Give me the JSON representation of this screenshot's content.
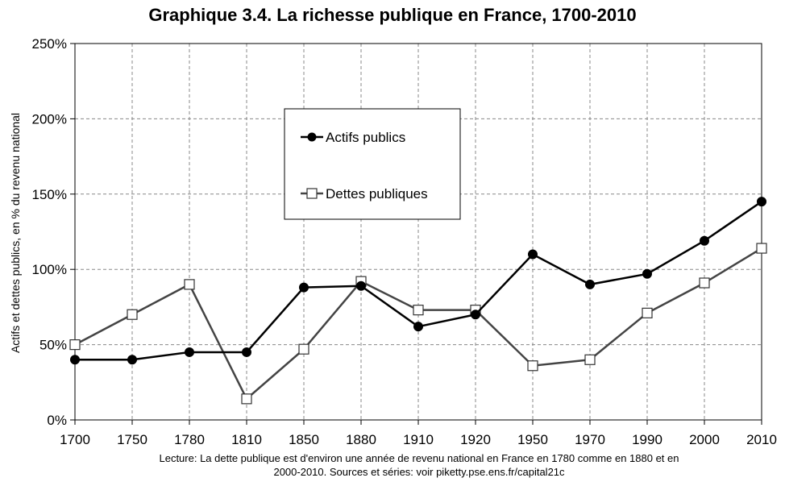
{
  "chart_data": {
    "type": "line",
    "title": "Graphique 3.4. La richesse publique en France, 1700-2010",
    "ylabel": "Actifs et dettes publics, en % du revenu national",
    "xlabel": "",
    "categories": [
      "1700",
      "1750",
      "1780",
      "1810",
      "1850",
      "1880",
      "1910",
      "1920",
      "1950",
      "1970",
      "1990",
      "2000",
      "2010"
    ],
    "ylim": [
      0,
      250
    ],
    "yticks": [
      0,
      50,
      100,
      150,
      200,
      250
    ],
    "ytick_labels": [
      "0%",
      "50%",
      "100%",
      "150%",
      "200%",
      "250%"
    ],
    "grid": true,
    "legend_position": "top-center",
    "series": [
      {
        "name": "Actifs publics",
        "marker": "filled-circle",
        "color": "#000000",
        "values": [
          40,
          40,
          45,
          45,
          88,
          89,
          62,
          70,
          110,
          90,
          97,
          119,
          145
        ]
      },
      {
        "name": "Dettes publiques",
        "marker": "open-square",
        "color": "#444444",
        "values": [
          50,
          70,
          90,
          14,
          47,
          92,
          73,
          73,
          36,
          40,
          71,
          91,
          114
        ]
      }
    ]
  },
  "caption": {
    "line1": "Lecture: La dette publique est d'environ une année de revenu national en France en 1780 comme en 1880 et en",
    "line2": "2000-2010. Sources et séries: voir piketty.pse.ens.fr/capital21c"
  }
}
